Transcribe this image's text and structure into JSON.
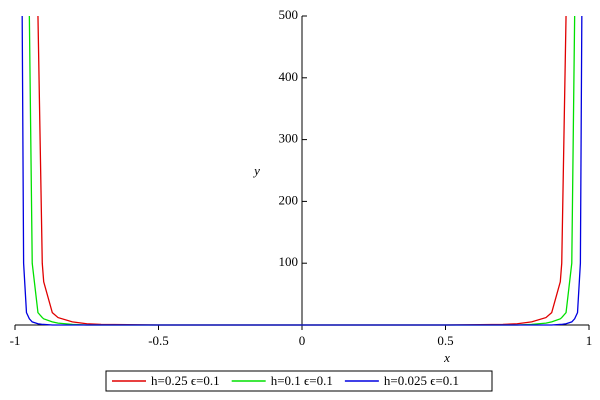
{
  "chart_data": {
    "type": "line",
    "xlabel": "x",
    "ylabel": "y",
    "x": [
      -0.975,
      -0.97,
      -0.96,
      -0.95,
      -0.94,
      -0.92,
      -0.905,
      -0.9,
      -0.87,
      -0.85,
      -0.8,
      -0.75,
      -0.7,
      -0.5,
      0,
      0.5,
      0.7,
      0.75,
      0.8,
      0.85,
      0.87,
      0.9,
      0.905,
      0.92,
      0.94,
      0.95,
      0.96,
      0.97,
      0.975
    ],
    "series": [
      {
        "name": "h=0.25 ϵ=0.1",
        "color": "#e00000",
        "values": [
          null,
          null,
          null,
          null,
          null,
          500,
          100,
          70,
          20,
          12,
          5,
          2,
          1,
          0,
          0,
          0,
          1,
          2,
          5,
          12,
          20,
          70,
          100,
          500,
          null,
          null,
          null,
          null,
          null
        ]
      },
      {
        "name": "h=0.1 ϵ=0.1",
        "color": "#00e000",
        "values": [
          null,
          null,
          null,
          500,
          100,
          20,
          12,
          10,
          5,
          3,
          1,
          0,
          0,
          0,
          0,
          0,
          0,
          0,
          1,
          3,
          5,
          10,
          12,
          20,
          100,
          500,
          null,
          null,
          null
        ]
      },
      {
        "name": "h=0.025 ϵ=0.1",
        "color": "#0000e0",
        "values": [
          500,
          100,
          20,
          10,
          5,
          2,
          1,
          1,
          0,
          0,
          0,
          0,
          0,
          0,
          0,
          0,
          0,
          0,
          0,
          0,
          0,
          1,
          1,
          2,
          5,
          10,
          20,
          100,
          500
        ]
      }
    ],
    "xlim": [
      -1,
      1
    ],
    "ylim": [
      0,
      500
    ],
    "xticks": [
      -1,
      -0.5,
      0,
      0.5,
      1
    ],
    "yticks": [
      100,
      200,
      300,
      400,
      500
    ],
    "legend": "bottom"
  }
}
